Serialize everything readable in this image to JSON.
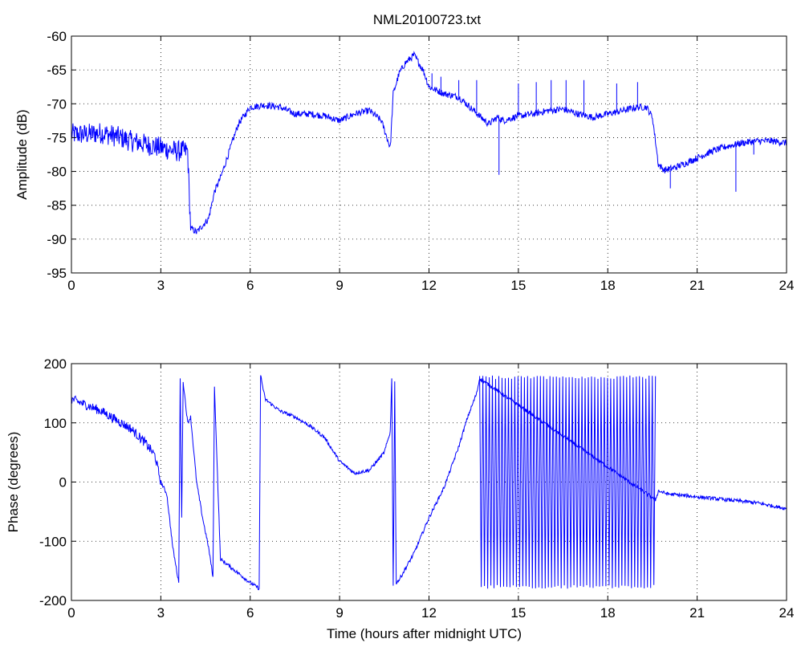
{
  "title": "NML20100723.txt",
  "chart_data": [
    {
      "type": "line",
      "ylabel": "Amplitude (dB)",
      "xlabel": "",
      "xlim": [
        0,
        24
      ],
      "ylim": [
        -95,
        -60
      ],
      "xticks": [
        0,
        3,
        6,
        9,
        12,
        15,
        18,
        21,
        24
      ],
      "yticks": [
        -95,
        -90,
        -85,
        -80,
        -75,
        -70,
        -65,
        -60
      ],
      "grid": true,
      "color": "#0000ff",
      "series": [
        {
          "x": [
            0,
            0.5,
            1.0,
            1.5,
            2.0,
            2.5,
            3.0,
            3.5,
            3.9,
            4.0,
            4.05,
            4.2,
            4.4,
            4.6,
            4.8,
            5.0,
            5.3,
            5.6,
            6.0,
            6.5,
            7.0,
            7.5,
            8.0,
            8.5,
            9.0,
            9.5,
            10.0,
            10.4,
            10.7,
            10.8,
            11.0,
            11.2,
            11.5,
            11.8,
            12.0,
            12.5,
            13.0,
            13.5,
            14.0,
            14.3,
            14.5,
            15.0,
            15.5,
            16.0,
            16.5,
            17.0,
            17.5,
            18.0,
            18.5,
            19.0,
            19.3,
            19.5,
            19.7,
            19.9,
            20.2,
            20.5,
            21.0,
            21.5,
            22.0,
            22.5,
            23.0,
            23.5,
            24.0
          ],
          "y": [
            -74.5,
            -74.5,
            -74.3,
            -74.8,
            -75.5,
            -76.0,
            -76.5,
            -77.0,
            -77.0,
            -88.5,
            -88.5,
            -89.0,
            -88.0,
            -87.0,
            -83.0,
            -81.0,
            -77.0,
            -73.0,
            -70.5,
            -70.2,
            -70.5,
            -71.5,
            -71.5,
            -71.8,
            -72.5,
            -71.5,
            -71.0,
            -72.5,
            -76.5,
            -68.5,
            -65.5,
            -64.0,
            -62.8,
            -65.0,
            -67.5,
            -68.5,
            -69.0,
            -71.0,
            -73.0,
            -72.0,
            -72.5,
            -71.8,
            -71.5,
            -71.0,
            -70.8,
            -71.5,
            -72.0,
            -71.5,
            -71.0,
            -70.5,
            -70.5,
            -72.0,
            -79.0,
            -79.8,
            -79.5,
            -79.0,
            -78.0,
            -77.0,
            -76.3,
            -75.8,
            -75.5,
            -75.5,
            -75.8
          ]
        }
      ]
    },
    {
      "type": "line",
      "ylabel": "Phase (degrees)",
      "xlabel": "Time (hours after midnight UTC)",
      "xlim": [
        0,
        24
      ],
      "ylim": [
        -200,
        200
      ],
      "xticks": [
        0,
        3,
        6,
        9,
        12,
        15,
        18,
        21,
        24
      ],
      "yticks": [
        -200,
        -100,
        0,
        100,
        200
      ],
      "grid": true,
      "color": "#0000ff",
      "series": [
        {
          "x": [
            0,
            0.5,
            1.0,
            1.5,
            2.0,
            2.5,
            2.8,
            3.0,
            3.2,
            3.4,
            3.6,
            3.65,
            3.7,
            3.75,
            3.9,
            4.0,
            4.2,
            4.4,
            4.6,
            4.75,
            4.8,
            5.0,
            5.5,
            6.0,
            6.3,
            6.35,
            6.5,
            7.0,
            7.5,
            8.0,
            8.5,
            9.0,
            9.5,
            10.0,
            10.5,
            10.7,
            10.75,
            10.8,
            10.85,
            10.9,
            11.0,
            11.5,
            12.0,
            12.5,
            13.0,
            13.3,
            13.6,
            13.7,
            19.6,
            19.7,
            20.0,
            21.0,
            22.0,
            23.0,
            24.0
          ],
          "y": [
            140,
            130,
            120,
            105,
            90,
            65,
            45,
            0,
            -20,
            -110,
            -170,
            175,
            -60,
            170,
            100,
            110,
            0,
            -60,
            -110,
            -160,
            160,
            -130,
            -150,
            -170,
            -180,
            180,
            140,
            120,
            110,
            95,
            75,
            35,
            15,
            20,
            50,
            85,
            175,
            -175,
            170,
            -170,
            -165,
            -120,
            -60,
            -10,
            60,
            110,
            150,
            175,
            -30,
            -15,
            -20,
            -25,
            -30,
            -35,
            -45
          ]
        },
        {
          "name": "",
          "x": [
            13.7,
            19.6
          ],
          "y": [
            -180,
            180
          ],
          "oscillating": true
        }
      ]
    }
  ]
}
